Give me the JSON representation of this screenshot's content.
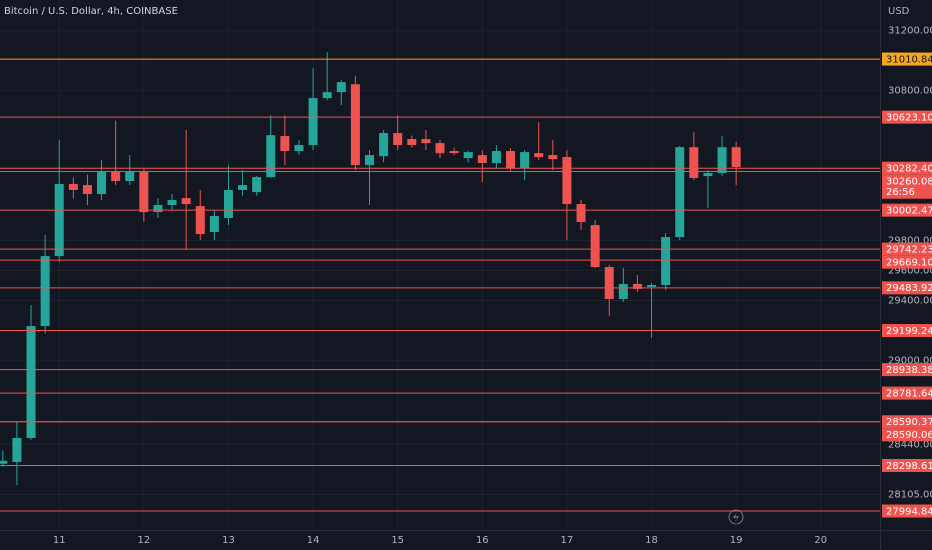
{
  "chart_data": {
    "type": "candlestick",
    "title": "Bitcoin / U.S. Dollar, 4h, COINBASE",
    "currency": "USD",
    "up_color": "#26a69a",
    "down_color": "#ef5350",
    "x": [
      0,
      1,
      2,
      3,
      4,
      5,
      6,
      7,
      8,
      9,
      10,
      11,
      12,
      13,
      14,
      15,
      16,
      17,
      18,
      19,
      20,
      21,
      22,
      23,
      24,
      25,
      26,
      27,
      28,
      29,
      30,
      31,
      32,
      33,
      34,
      35,
      36,
      37,
      38,
      39,
      40,
      41,
      42,
      43,
      44,
      45,
      46,
      47,
      48,
      49,
      50,
      51,
      52
    ],
    "open": [
      28310,
      28322,
      28482,
      29229,
      29696,
      30177,
      30170,
      30110,
      30257,
      30197,
      30257,
      29990,
      30037,
      30083,
      30030,
      29857,
      29950,
      30137,
      30123,
      30223,
      30497,
      30397,
      30437,
      30750,
      30790,
      30843,
      30303,
      30363,
      30517,
      30477,
      30477,
      30450,
      30397,
      30350,
      30370,
      30317,
      30397,
      30283,
      30383,
      30370,
      30357,
      30043,
      29903,
      29623,
      29410,
      29510,
      29490,
      29503,
      29823,
      30423,
      30230,
      30250,
      30423
    ],
    "high": [
      28400,
      28589,
      29369,
      29836,
      30470,
      30220,
      30240,
      30337,
      30600,
      30370,
      30280,
      30083,
      30110,
      30537,
      30137,
      30000,
      30303,
      30270,
      30230,
      30637,
      30637,
      30470,
      30950,
      31057,
      30870,
      30897,
      30403,
      30537,
      30637,
      30500,
      30537,
      30470,
      30420,
      30400,
      30403,
      30437,
      30417,
      30403,
      30590,
      30470,
      30403,
      30070,
      29937,
      29637,
      29617,
      29570,
      29517,
      29850,
      30430,
      30523,
      30270,
      30497,
      30457
    ],
    "low": [
      28290,
      28168,
      28470,
      29180,
      29656,
      30080,
      30036,
      30070,
      30170,
      30170,
      29924,
      29950,
      30000,
      29737,
      29803,
      29803,
      29903,
      30100,
      30100,
      30217,
      30303,
      30370,
      30403,
      30737,
      30703,
      30270,
      30037,
      30323,
      30403,
      30420,
      30403,
      30350,
      30370,
      30320,
      30190,
      30283,
      30257,
      30203,
      30337,
      30270,
      29803,
      29870,
      29617,
      29297,
      29390,
      29457,
      29150,
      29470,
      29803,
      30203,
      30017,
      30230,
      30170
    ],
    "close": [
      28330,
      28482,
      29229,
      29696,
      30177,
      30137,
      30110,
      30257,
      30197,
      30257,
      29990,
      30037,
      30070,
      30043,
      29843,
      29964,
      30137,
      30170,
      30223,
      30503,
      30397,
      30437,
      30750,
      30790,
      30857,
      30303,
      30370,
      30517,
      30437,
      30437,
      30450,
      30383,
      30383,
      30390,
      30317,
      30397,
      30283,
      30390,
      30357,
      30343,
      30043,
      29923,
      29623,
      29410,
      29510,
      29477,
      29503,
      29823,
      30423,
      30217,
      30250,
      30423,
      30290
    ],
    "xlim": [
      -0.2,
      62.2
    ],
    "xticks": [
      {
        "value": 4,
        "label": "11"
      },
      {
        "value": 10,
        "label": "12"
      },
      {
        "value": 16,
        "label": "13"
      },
      {
        "value": 22,
        "label": "14"
      },
      {
        "value": 28,
        "label": "15"
      },
      {
        "value": 34,
        "label": "16"
      },
      {
        "value": 40,
        "label": "17"
      },
      {
        "value": 46,
        "label": "18"
      },
      {
        "value": 52,
        "label": "19"
      },
      {
        "value": 58,
        "label": "20"
      }
    ],
    "ylim": [
      27868,
      31405
    ],
    "yticks": [
      {
        "value": 31200,
        "label": "31200.00"
      },
      {
        "value": 30800,
        "label": "30800.00"
      },
      {
        "value": 29800,
        "label": "29800.00"
      },
      {
        "value": 29600,
        "label": "29600.00"
      },
      {
        "value": 29400,
        "label": "29400.00"
      },
      {
        "value": 29000,
        "label": "29000.00"
      },
      {
        "value": 28440,
        "label": "28440.00"
      },
      {
        "value": 28105,
        "label": "28105.00"
      }
    ],
    "grid": true,
    "levels": [
      {
        "value": 31010.84,
        "label": "31010.84",
        "color": "#f5a623"
      },
      {
        "value": 30623.1,
        "label": "30623.10",
        "color": "#ef5350"
      },
      {
        "value": 30282.4,
        "label": "30282.40",
        "color": "#ef5350"
      },
      {
        "value": 30260.08,
        "label": "30260.08",
        "color": "#ef5350",
        "countdown": "26:56"
      },
      {
        "value": 30002.47,
        "label": "30002.47",
        "color": "#ef5350"
      },
      {
        "value": 29742.23,
        "label": "29742.23",
        "color": "#ef5350"
      },
      {
        "value": 29669.1,
        "label": "29669.10",
        "color": "#ef5350"
      },
      {
        "value": 29483.92,
        "label": "29483.92",
        "color": "#ef5350"
      },
      {
        "value": 29199.24,
        "label": "29199.24",
        "color": "#ef5350"
      },
      {
        "value": 28938.38,
        "label": "28938.38",
        "color": "#ef5350"
      },
      {
        "value": 28781.64,
        "label": "28781.64",
        "color": "#ef5350"
      },
      {
        "value": 28590.37,
        "label": "28590.37",
        "color": "#ef5350"
      },
      {
        "value": 28590.06,
        "label": "28590.06",
        "color": "#ef5350"
      },
      {
        "value": 28298.61,
        "label": "28298.61",
        "color": "#ef5350"
      },
      {
        "value": 27994.84,
        "label": "27994.84",
        "color": "#ef5350"
      }
    ]
  }
}
